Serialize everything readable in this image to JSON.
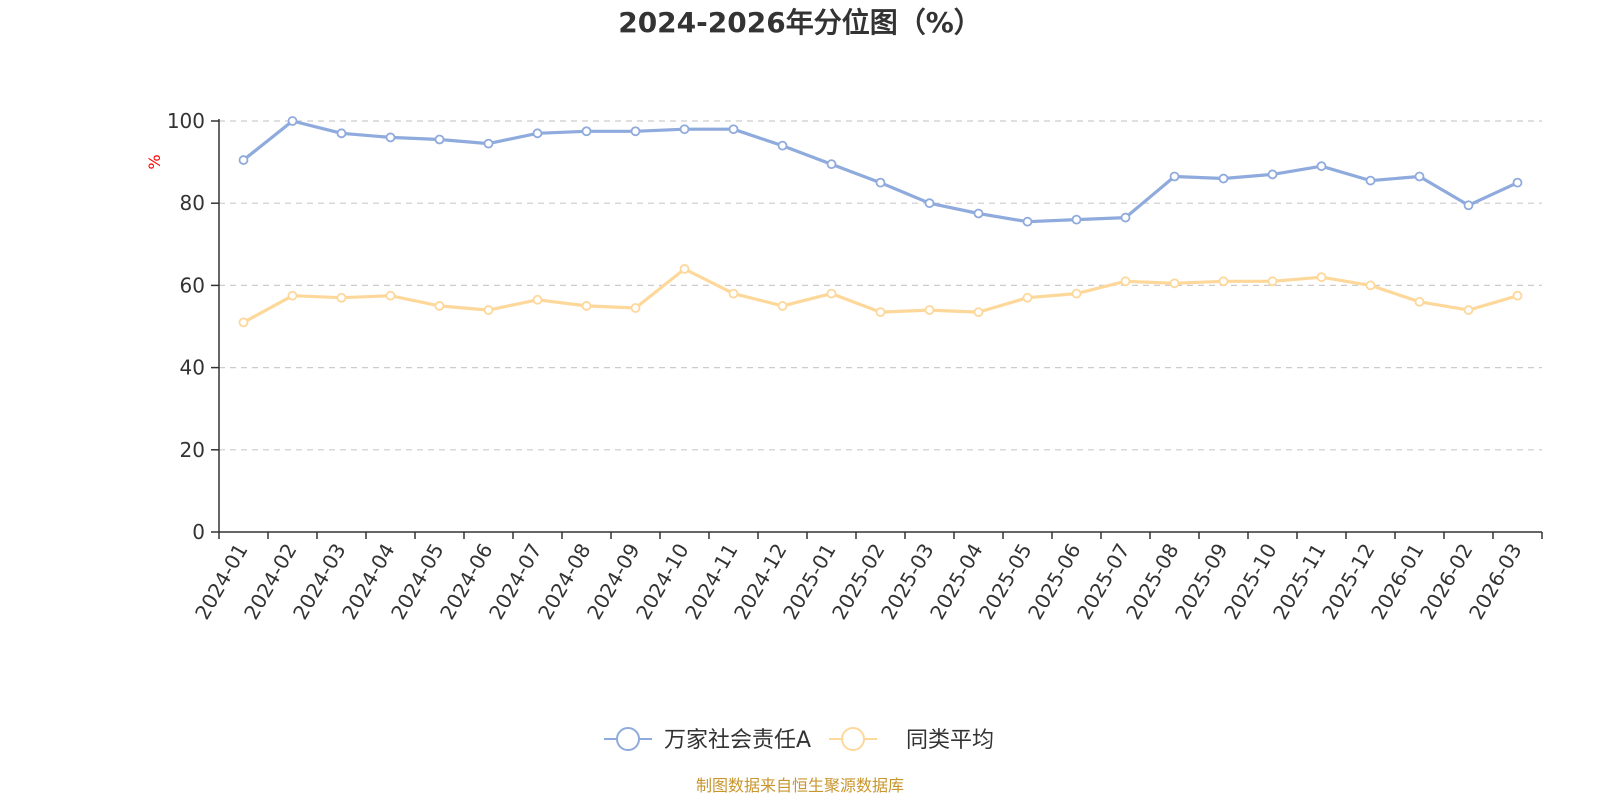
{
  "chart_data": {
    "type": "line",
    "title": "2024-2026年分位图（%）",
    "ylabel": "%",
    "ylim": [
      0,
      100
    ],
    "yticks": [
      0,
      20,
      40,
      60,
      80,
      100
    ],
    "grid": true,
    "legend_position": "bottom",
    "categories": [
      "2024-01",
      "2024-02",
      "2024-03",
      "2024-04",
      "2024-05",
      "2024-06",
      "2024-07",
      "2024-08",
      "2024-09",
      "2024-10",
      "2024-11",
      "2024-12",
      "2025-01",
      "2025-02",
      "2025-03",
      "2025-04",
      "2025-05",
      "2025-06",
      "2025-07",
      "2025-08",
      "2025-09",
      "2025-10",
      "2025-11",
      "2025-12",
      "2026-01",
      "2026-02",
      "2026-03"
    ],
    "series": [
      {
        "name": "万家社会责任A",
        "color": "#8faadc",
        "values": [
          90.5,
          100,
          97,
          96,
          95.5,
          94.5,
          97,
          97.5,
          97.5,
          98,
          98,
          94,
          89.5,
          85,
          80,
          77.5,
          75.5,
          76,
          76.5,
          86.5,
          86,
          87,
          89,
          85.5,
          86.5,
          79.5,
          85
        ]
      },
      {
        "name": "同类平均",
        "color": "#fdd89a",
        "values": [
          51,
          57.5,
          57,
          57.5,
          55,
          54,
          56.5,
          55,
          54.5,
          64,
          58,
          55,
          58,
          53.5,
          54,
          53.5,
          57,
          58,
          61,
          60.5,
          61,
          61,
          62,
          60,
          56,
          54,
          57.5
        ]
      }
    ]
  },
  "source_text": "制图数据来自恒生聚源数据库",
  "colors": {
    "axis": "#333333",
    "grid": "#cccccc",
    "unit_label": "#ff0000",
    "source_text": "#c8962e"
  }
}
